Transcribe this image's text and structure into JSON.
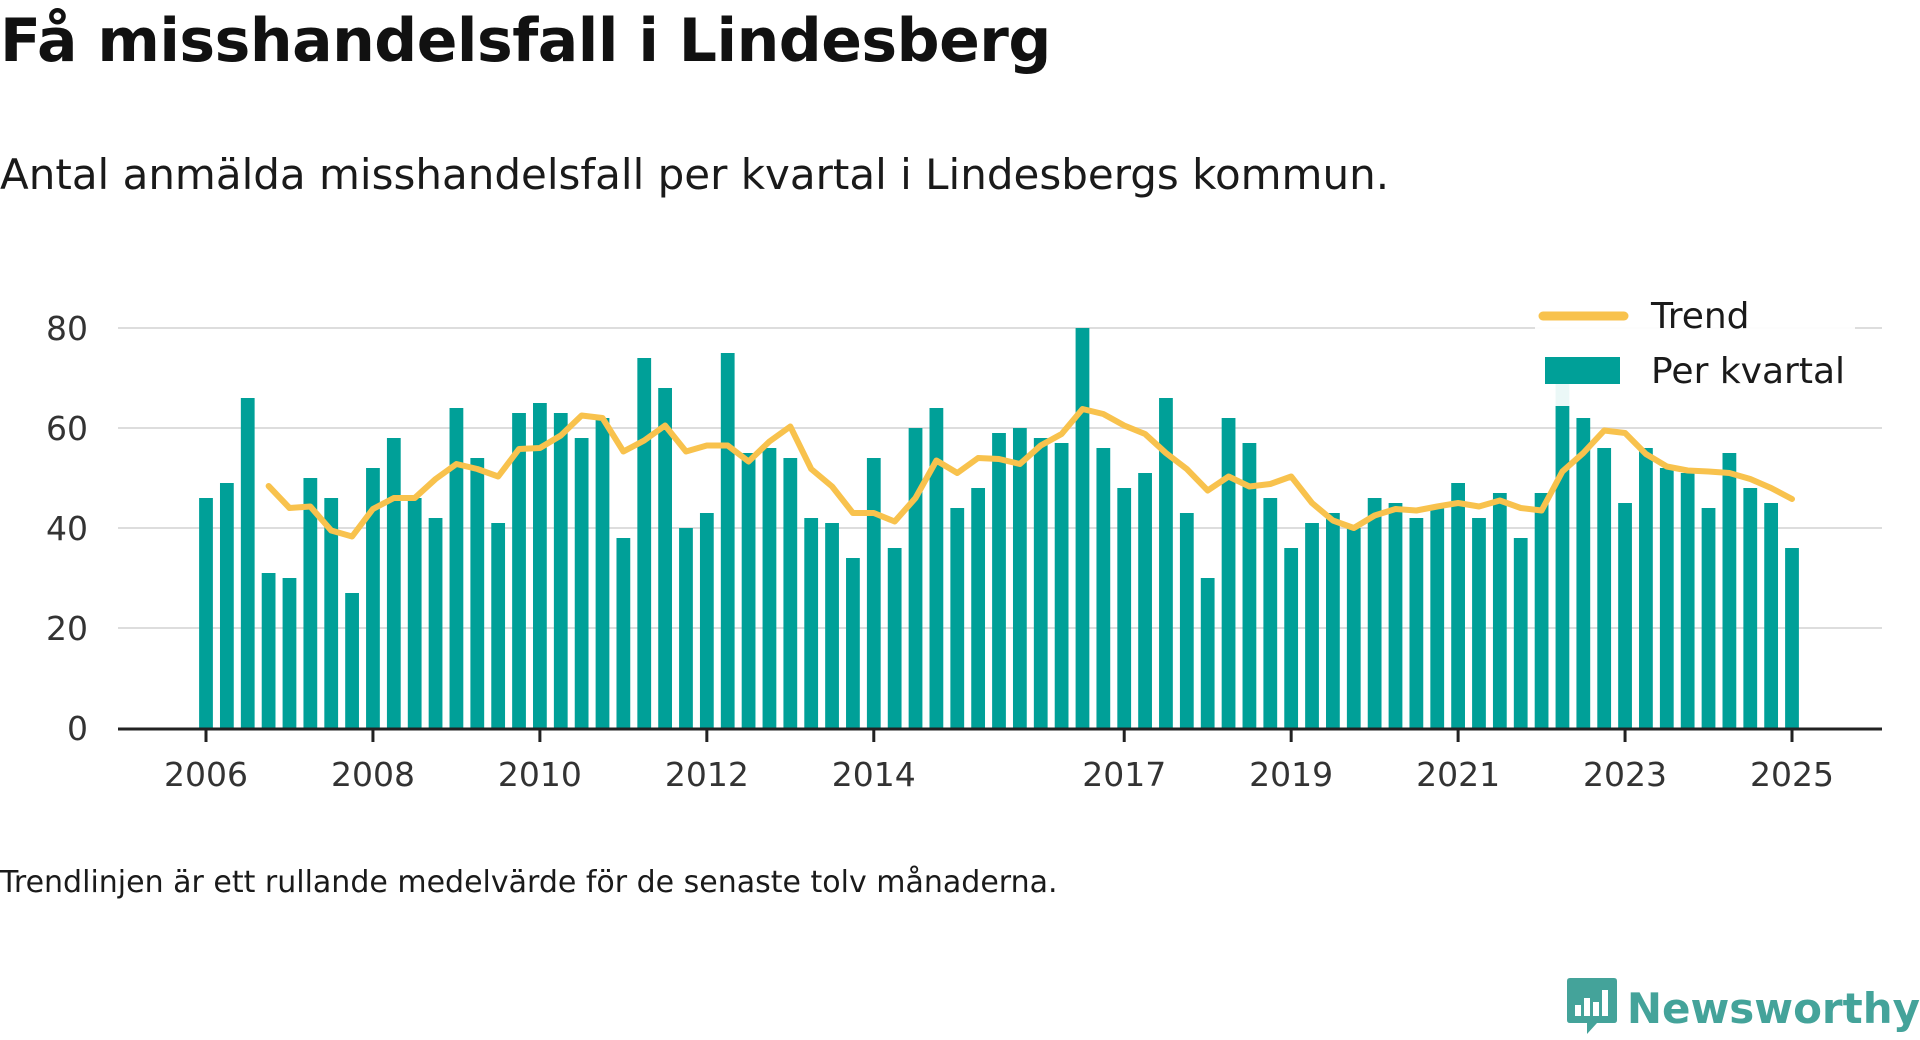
{
  "title": "Få misshandelsfall i Lindesberg",
  "subtitle": "Antal anmälda misshandelsfall per kvartal i Lindesbergs kommun.",
  "footnote": "Trendlinjen är ett rullande medelvärde för de senaste tolv månaderna.",
  "brand": {
    "name": "Newsworthy",
    "icon": "newsworthy-logo-icon",
    "color": "#44a39a"
  },
  "colors": {
    "bars": "#00a098",
    "trend": "#f8c24d",
    "grid": "#dddddd",
    "axis": "#222222"
  },
  "chart_data": {
    "type": "bar",
    "ylim": [
      0,
      82
    ],
    "yticks": [
      0,
      20,
      40,
      60,
      80
    ],
    "grid": true,
    "legend_position": "top-right",
    "x_start": 2006.0,
    "x_end": 2025.0,
    "xticks": [
      "2006",
      "2008",
      "2010",
      "2012",
      "2014",
      "2017",
      "2019",
      "2021",
      "2023",
      "2025"
    ],
    "xtick_values": [
      2006,
      2008,
      2010,
      2012,
      2014,
      2017,
      2019,
      2021,
      2023,
      2025
    ],
    "series": [
      {
        "name": "Per kvartal",
        "type": "bar",
        "values": [
          46,
          49,
          66,
          31,
          30,
          50,
          46,
          27,
          52,
          58,
          46,
          42,
          64,
          54,
          41,
          63,
          65,
          63,
          58,
          62,
          38,
          74,
          68,
          40,
          43,
          75,
          55,
          56,
          54,
          42,
          41,
          34,
          54,
          36,
          60,
          64,
          44,
          48,
          59,
          60,
          58,
          57,
          80,
          56,
          48,
          51,
          66,
          43,
          30,
          62,
          57,
          46,
          36,
          41,
          43,
          40,
          46,
          45,
          42,
          44,
          49,
          42,
          47,
          38,
          47,
          73,
          62,
          56,
          45,
          56,
          52,
          51,
          44,
          55,
          48,
          45,
          36
        ]
      },
      {
        "name": "Trend",
        "type": "line",
        "values": [
          null,
          null,
          null,
          48.4,
          44.0,
          44.3,
          39.5,
          38.3,
          43.8,
          46.0,
          46.0,
          49.8,
          52.8,
          51.8,
          50.3,
          55.8,
          56.0,
          58.5,
          62.5,
          62.0,
          55.3,
          57.5,
          60.5,
          55.3,
          56.5,
          56.5,
          53.3,
          57.3,
          60.3,
          51.8,
          48.3,
          43.0,
          43.0,
          41.3,
          46.0,
          53.5,
          51.0,
          54.0,
          53.8,
          52.8,
          56.5,
          58.8,
          63.8,
          62.8,
          60.5,
          58.8,
          55.0,
          51.8,
          47.5,
          50.3,
          48.3,
          48.8,
          50.3,
          45.0,
          41.5,
          40.0,
          42.5,
          43.8,
          43.5,
          44.3,
          45.0,
          44.3,
          45.5,
          44.0,
          43.5,
          51.3,
          55.0,
          59.5,
          59.0,
          54.8,
          52.3,
          51.5,
          51.3,
          51.0,
          49.8,
          48.0,
          45.8
        ]
      }
    ]
  }
}
